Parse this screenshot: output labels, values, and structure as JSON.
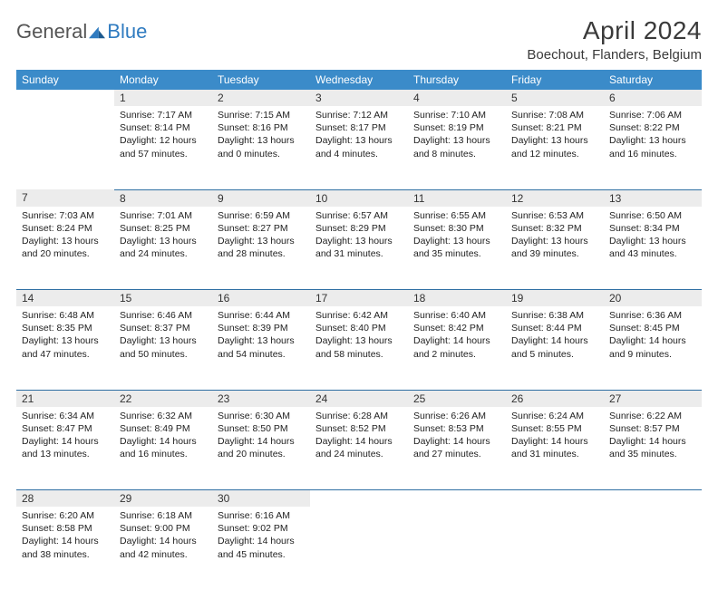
{
  "logo": {
    "general": "General",
    "blue": "Blue"
  },
  "title": "April 2024",
  "location": "Boechout, Flanders, Belgium",
  "colors": {
    "header_bg": "#3b8bc9",
    "header_text": "#ffffff",
    "daynum_bg": "#ececec",
    "row_divider": "#2f6fa3",
    "logo_blue": "#2f7bc0",
    "logo_grey": "#555555"
  },
  "weekdays": [
    "Sunday",
    "Monday",
    "Tuesday",
    "Wednesday",
    "Thursday",
    "Friday",
    "Saturday"
  ],
  "start_offset": 1,
  "days": [
    {
      "n": 1,
      "sr": "7:17 AM",
      "ss": "8:14 PM",
      "dl": "12 hours and 57 minutes."
    },
    {
      "n": 2,
      "sr": "7:15 AM",
      "ss": "8:16 PM",
      "dl": "13 hours and 0 minutes."
    },
    {
      "n": 3,
      "sr": "7:12 AM",
      "ss": "8:17 PM",
      "dl": "13 hours and 4 minutes."
    },
    {
      "n": 4,
      "sr": "7:10 AM",
      "ss": "8:19 PM",
      "dl": "13 hours and 8 minutes."
    },
    {
      "n": 5,
      "sr": "7:08 AM",
      "ss": "8:21 PM",
      "dl": "13 hours and 12 minutes."
    },
    {
      "n": 6,
      "sr": "7:06 AM",
      "ss": "8:22 PM",
      "dl": "13 hours and 16 minutes."
    },
    {
      "n": 7,
      "sr": "7:03 AM",
      "ss": "8:24 PM",
      "dl": "13 hours and 20 minutes."
    },
    {
      "n": 8,
      "sr": "7:01 AM",
      "ss": "8:25 PM",
      "dl": "13 hours and 24 minutes."
    },
    {
      "n": 9,
      "sr": "6:59 AM",
      "ss": "8:27 PM",
      "dl": "13 hours and 28 minutes."
    },
    {
      "n": 10,
      "sr": "6:57 AM",
      "ss": "8:29 PM",
      "dl": "13 hours and 31 minutes."
    },
    {
      "n": 11,
      "sr": "6:55 AM",
      "ss": "8:30 PM",
      "dl": "13 hours and 35 minutes."
    },
    {
      "n": 12,
      "sr": "6:53 AM",
      "ss": "8:32 PM",
      "dl": "13 hours and 39 minutes."
    },
    {
      "n": 13,
      "sr": "6:50 AM",
      "ss": "8:34 PM",
      "dl": "13 hours and 43 minutes."
    },
    {
      "n": 14,
      "sr": "6:48 AM",
      "ss": "8:35 PM",
      "dl": "13 hours and 47 minutes."
    },
    {
      "n": 15,
      "sr": "6:46 AM",
      "ss": "8:37 PM",
      "dl": "13 hours and 50 minutes."
    },
    {
      "n": 16,
      "sr": "6:44 AM",
      "ss": "8:39 PM",
      "dl": "13 hours and 54 minutes."
    },
    {
      "n": 17,
      "sr": "6:42 AM",
      "ss": "8:40 PM",
      "dl": "13 hours and 58 minutes."
    },
    {
      "n": 18,
      "sr": "6:40 AM",
      "ss": "8:42 PM",
      "dl": "14 hours and 2 minutes."
    },
    {
      "n": 19,
      "sr": "6:38 AM",
      "ss": "8:44 PM",
      "dl": "14 hours and 5 minutes."
    },
    {
      "n": 20,
      "sr": "6:36 AM",
      "ss": "8:45 PM",
      "dl": "14 hours and 9 minutes."
    },
    {
      "n": 21,
      "sr": "6:34 AM",
      "ss": "8:47 PM",
      "dl": "14 hours and 13 minutes."
    },
    {
      "n": 22,
      "sr": "6:32 AM",
      "ss": "8:49 PM",
      "dl": "14 hours and 16 minutes."
    },
    {
      "n": 23,
      "sr": "6:30 AM",
      "ss": "8:50 PM",
      "dl": "14 hours and 20 minutes."
    },
    {
      "n": 24,
      "sr": "6:28 AM",
      "ss": "8:52 PM",
      "dl": "14 hours and 24 minutes."
    },
    {
      "n": 25,
      "sr": "6:26 AM",
      "ss": "8:53 PM",
      "dl": "14 hours and 27 minutes."
    },
    {
      "n": 26,
      "sr": "6:24 AM",
      "ss": "8:55 PM",
      "dl": "14 hours and 31 minutes."
    },
    {
      "n": 27,
      "sr": "6:22 AM",
      "ss": "8:57 PM",
      "dl": "14 hours and 35 minutes."
    },
    {
      "n": 28,
      "sr": "6:20 AM",
      "ss": "8:58 PM",
      "dl": "14 hours and 38 minutes."
    },
    {
      "n": 29,
      "sr": "6:18 AM",
      "ss": "9:00 PM",
      "dl": "14 hours and 42 minutes."
    },
    {
      "n": 30,
      "sr": "6:16 AM",
      "ss": "9:02 PM",
      "dl": "14 hours and 45 minutes."
    }
  ],
  "labels": {
    "sunrise": "Sunrise: ",
    "sunset": "Sunset: ",
    "daylight": "Daylight: "
  }
}
